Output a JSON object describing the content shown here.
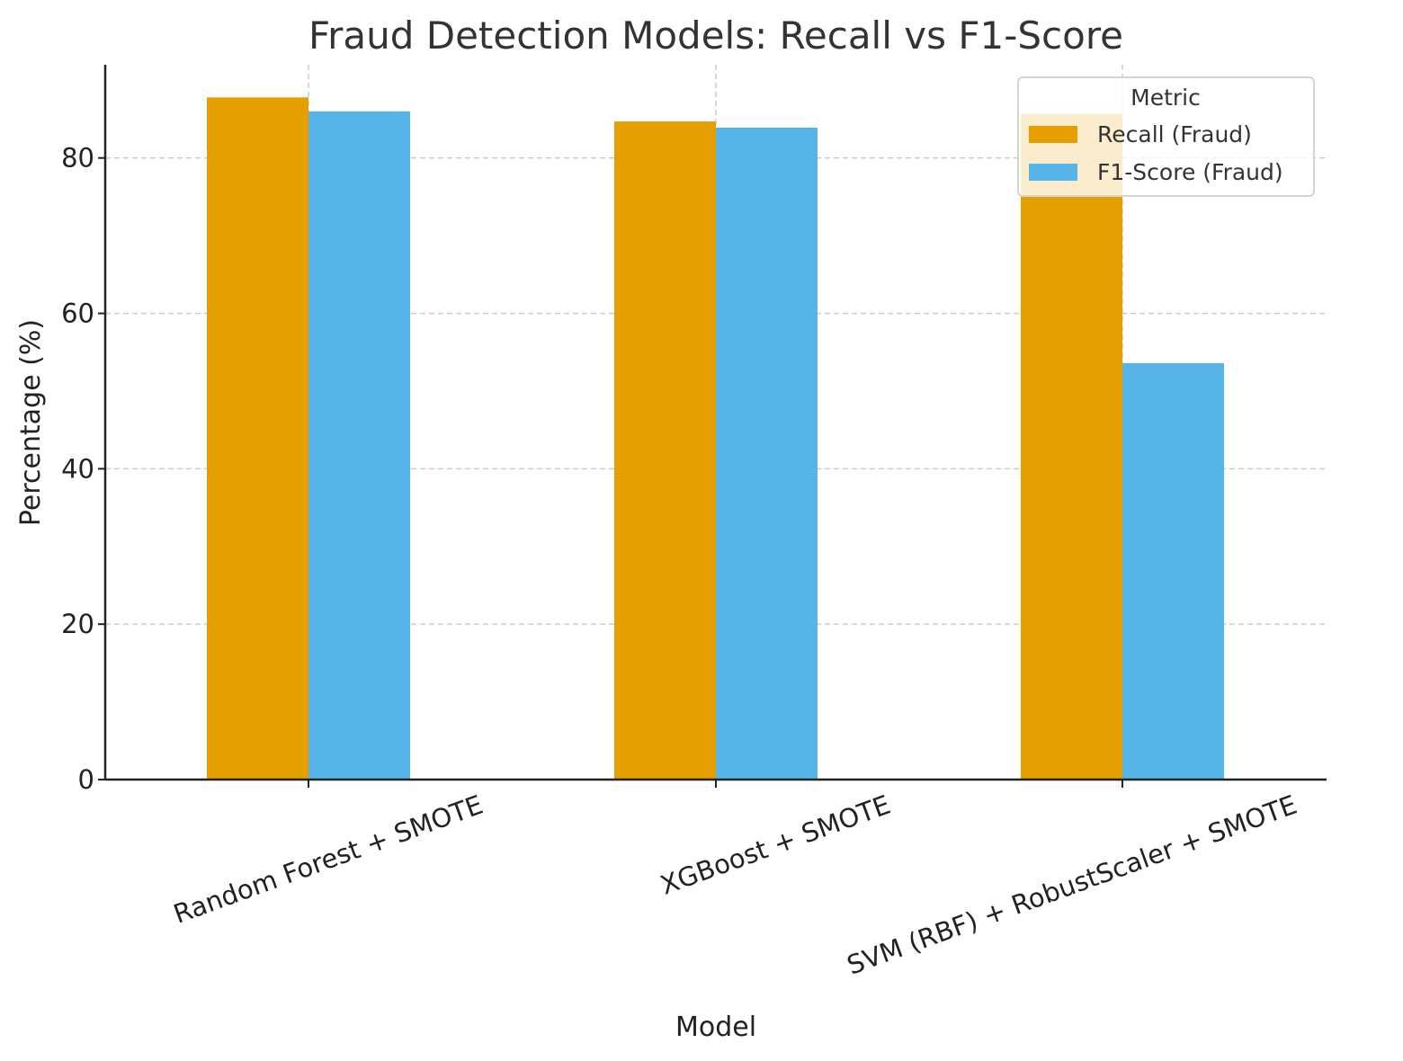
{
  "chart_data": {
    "type": "bar",
    "title": "Fraud Detection Models: Recall vs F1-Score",
    "xlabel": "Model",
    "ylabel": "Percentage (%)",
    "categories": [
      "Random Forest + SMOTE",
      "XGBoost + SMOTE",
      "SVM (RBF) + RobustScaler + SMOTE"
    ],
    "series": [
      {
        "name": "Recall (Fraud)",
        "values": [
          87.8,
          84.7,
          85.7
        ],
        "color": "#E69F00"
      },
      {
        "name": "F1-Score (Fraud)",
        "values": [
          86.0,
          83.9,
          53.6
        ],
        "color": "#56B4E9"
      }
    ],
    "ylim": [
      0,
      92
    ],
    "yticks": [
      0,
      20,
      40,
      60,
      80
    ],
    "grid": true,
    "legend": {
      "title": "Metric",
      "position": "top-right"
    }
  }
}
